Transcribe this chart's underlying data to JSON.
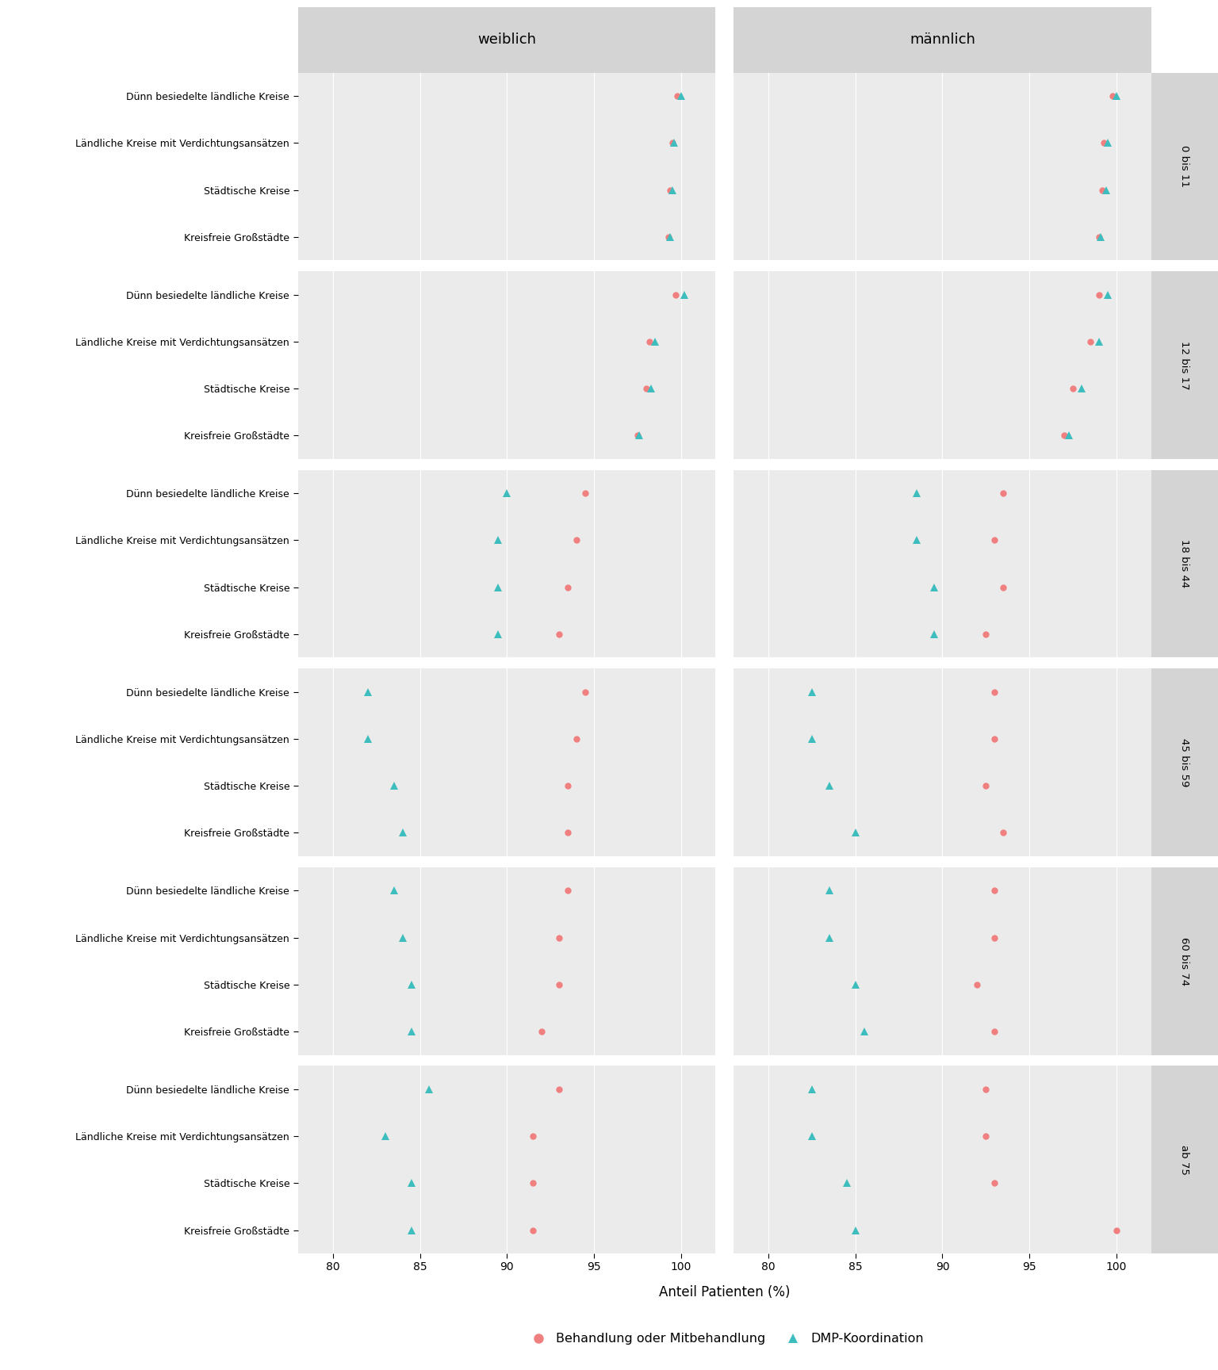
{
  "age_groups": [
    "0 bis 11",
    "12 bis 17",
    "18 bis 44",
    "45 bis 59",
    "60 bis 74",
    "ab 75"
  ],
  "region_types": [
    "Dünn besiedelte ländliche Kreise",
    "Ländliche Kreise mit Verdichtungsansätzen",
    "Städtische Kreise",
    "Kreisfreie Großstädte"
  ],
  "genders": [
    "weiblich",
    "männlich"
  ],
  "data": {
    "weiblich": {
      "0 bis 11": {
        "Dünn besiedelte ländliche Kreise": {
          "treatment": 99.8,
          "dmp": 100.0
        },
        "Ländliche Kreise mit Verdichtungsansätzen": {
          "treatment": 99.5,
          "dmp": 99.6
        },
        "Städtische Kreise": {
          "treatment": 99.4,
          "dmp": 99.5
        },
        "Kreisfreie Großstädte": {
          "treatment": 99.3,
          "dmp": 99.4
        }
      },
      "12 bis 17": {
        "Dünn besiedelte ländliche Kreise": {
          "treatment": 99.7,
          "dmp": 100.2
        },
        "Ländliche Kreise mit Verdichtungsansätzen": {
          "treatment": 98.2,
          "dmp": 98.5
        },
        "Städtische Kreise": {
          "treatment": 98.0,
          "dmp": 98.3
        },
        "Kreisfreie Großstädte": {
          "treatment": 97.5,
          "dmp": 97.6
        }
      },
      "18 bis 44": {
        "Dünn besiedelte ländliche Kreise": {
          "treatment": 94.5,
          "dmp": 90.0
        },
        "Ländliche Kreise mit Verdichtungsansätzen": {
          "treatment": 94.0,
          "dmp": 89.5
        },
        "Städtische Kreise": {
          "treatment": 93.5,
          "dmp": 89.5
        },
        "Kreisfreie Großstädte": {
          "treatment": 93.0,
          "dmp": 89.5
        }
      },
      "45 bis 59": {
        "Dünn besiedelte ländliche Kreise": {
          "treatment": 94.5,
          "dmp": 82.0
        },
        "Ländliche Kreise mit Verdichtungsansätzen": {
          "treatment": 94.0,
          "dmp": 82.0
        },
        "Städtische Kreise": {
          "treatment": 93.5,
          "dmp": 83.5
        },
        "Kreisfreie Großstädte": {
          "treatment": 93.5,
          "dmp": 84.0
        }
      },
      "60 bis 74": {
        "Dünn besiedelte ländliche Kreise": {
          "treatment": 93.5,
          "dmp": 83.5
        },
        "Ländliche Kreise mit Verdichtungsansätzen": {
          "treatment": 93.0,
          "dmp": 84.0
        },
        "Städtische Kreise": {
          "treatment": 93.0,
          "dmp": 84.5
        },
        "Kreisfreie Großstädte": {
          "treatment": 92.0,
          "dmp": 84.5
        }
      },
      "ab 75": {
        "Dünn besiedelte ländliche Kreise": {
          "treatment": 93.0,
          "dmp": 85.5
        },
        "Ländliche Kreise mit Verdichtungsansätzen": {
          "treatment": 91.5,
          "dmp": 83.0
        },
        "Städtische Kreise": {
          "treatment": 91.5,
          "dmp": 84.5
        },
        "Kreisfreie Großstädte": {
          "treatment": 91.5,
          "dmp": 84.5
        }
      }
    },
    "männlich": {
      "0 bis 11": {
        "Dünn besiedelte ländliche Kreise": {
          "treatment": 99.8,
          "dmp": 100.0
        },
        "Ländliche Kreise mit Verdichtungsansätzen": {
          "treatment": 99.3,
          "dmp": 99.5
        },
        "Städtische Kreise": {
          "treatment": 99.2,
          "dmp": 99.4
        },
        "Kreisfreie Großstädte": {
          "treatment": 99.0,
          "dmp": 99.1
        }
      },
      "12 bis 17": {
        "Dünn besiedelte ländliche Kreise": {
          "treatment": 99.0,
          "dmp": 99.5
        },
        "Ländliche Kreise mit Verdichtungsansätzen": {
          "treatment": 98.5,
          "dmp": 99.0
        },
        "Städtische Kreise": {
          "treatment": 97.5,
          "dmp": 98.0
        },
        "Kreisfreie Großstädte": {
          "treatment": 97.0,
          "dmp": 97.3
        }
      },
      "18 bis 44": {
        "Dünn besiedelte ländliche Kreise": {
          "treatment": 93.5,
          "dmp": 88.5
        },
        "Ländliche Kreise mit Verdichtungsansätzen": {
          "treatment": 93.0,
          "dmp": 88.5
        },
        "Städtische Kreise": {
          "treatment": 93.5,
          "dmp": 89.5
        },
        "Kreisfreie Großstädte": {
          "treatment": 92.5,
          "dmp": 89.5
        }
      },
      "45 bis 59": {
        "Dünn besiedelte ländliche Kreise": {
          "treatment": 93.0,
          "dmp": 82.5
        },
        "Ländliche Kreise mit Verdichtungsansätzen": {
          "treatment": 93.0,
          "dmp": 82.5
        },
        "Städtische Kreise": {
          "treatment": 92.5,
          "dmp": 83.5
        },
        "Kreisfreie Großstädte": {
          "treatment": 93.5,
          "dmp": 85.0
        }
      },
      "60 bis 74": {
        "Dünn besiedelte ländliche Kreise": {
          "treatment": 93.0,
          "dmp": 83.5
        },
        "Ländliche Kreise mit Verdichtungsansätzen": {
          "treatment": 93.0,
          "dmp": 83.5
        },
        "Städtische Kreise": {
          "treatment": 92.0,
          "dmp": 85.0
        },
        "Kreisfreie Großstädte": {
          "treatment": 93.0,
          "dmp": 85.5
        }
      },
      "ab 75": {
        "Dünn besiedelte ländliche Kreise": {
          "treatment": 92.5,
          "dmp": 82.5
        },
        "Ländliche Kreise mit Verdichtungsansätzen": {
          "treatment": 92.5,
          "dmp": 82.5
        },
        "Städtische Kreise": {
          "treatment": 93.0,
          "dmp": 84.5
        },
        "Kreisfreie Großstädte": {
          "treatment": 100.0,
          "dmp": 85.0
        }
      }
    }
  },
  "xlim": [
    78,
    102
  ],
  "xticks": [
    80,
    85,
    90,
    95,
    100
  ],
  "xlabel": "Anteil Patienten (%)",
  "treatment_color": "#F08080",
  "dmp_color": "#3DBDBD",
  "panel_bg": "#EBEBEB",
  "strip_bg": "#D4D4D4",
  "grid_color": "white",
  "legend_treatment": "Behandlung oder Mitbehandlung",
  "legend_dmp": "DMP-Koordination"
}
